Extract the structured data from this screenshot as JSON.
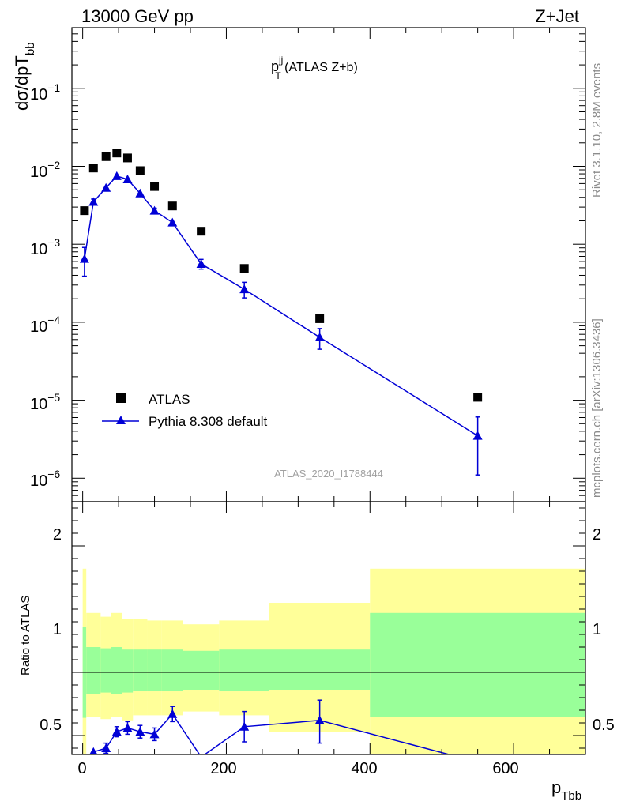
{
  "header": {
    "left": "13000 GeV pp",
    "right": "Z+Jet"
  },
  "plot_title": {
    "main": "p",
    "sup": "jj",
    "sub": "T",
    "rest": " (ATLAS Z+b)"
  },
  "watermark": "ATLAS_2020_I1788444",
  "side_text": {
    "rivet": "Rivet 3.1.10,  2.8M events",
    "mcplots": "mcplots.cern.ch [arXiv:1306.3436]"
  },
  "x_axis": {
    "main": "p",
    "sub": "Tbb",
    "ticks": [
      "0",
      "200",
      "400",
      "600"
    ]
  },
  "y_axis_top": {
    "main": "dσ/dpT",
    "sub": "bb",
    "ticks": [
      {
        "base": "10",
        "exp": "−1"
      },
      {
        "base": "10",
        "exp": "−2"
      },
      {
        "base": "10",
        "exp": "−3"
      },
      {
        "base": "10",
        "exp": "−4"
      },
      {
        "base": "10",
        "exp": "−5"
      },
      {
        "base": "10",
        "exp": "−6"
      }
    ]
  },
  "y_axis_bottom": {
    "label": "Ratio to ATLAS",
    "ticks": [
      "2",
      "1",
      "0.5"
    ]
  },
  "legend": {
    "data": "ATLAS",
    "mc": "Pythia 8.308 default"
  },
  "colors": {
    "mc": "#0000d6",
    "green": "#99ff99",
    "yellow": "#ffff99"
  },
  "chart_data": [
    {
      "type": "scatter",
      "xlim": [
        -15,
        700
      ],
      "ylim": [
        5e-07,
        0.6
      ],
      "log_y": true,
      "series": [
        {
          "name": "ATLAS",
          "x": [
            2.5,
            15,
            32.5,
            47.5,
            62.5,
            80,
            100,
            125,
            165,
            225,
            330,
            550
          ],
          "y": [
            0.0027,
            0.0095,
            0.0133,
            0.0148,
            0.0128,
            0.0088,
            0.0055,
            0.0031,
            0.00147,
            0.00049,
            0.000111,
            1.09e-05
          ]
        },
        {
          "name": "Pythia 8.308 default",
          "x": [
            2.5,
            15,
            32.5,
            47.5,
            62.5,
            80,
            100,
            125,
            165,
            225,
            330,
            550
          ],
          "y": [
            0.00065,
            0.0035,
            0.0053,
            0.0075,
            0.0068,
            0.0045,
            0.0027,
            0.0019,
            0.00056,
            0.000265,
            6.4e-05,
            3.5e-06
          ],
          "err_lo": [
            0.00026,
            0.0003,
            0.0003,
            0.0004,
            0.0004,
            0.0003,
            0.0002,
            0.0001,
            8e-05,
            6e-05,
            1.9e-05,
            2.4e-06
          ],
          "err_hi": [
            0.00026,
            0.0003,
            0.0003,
            0.0004,
            0.0004,
            0.0003,
            0.0002,
            0.0001,
            8e-05,
            6e-05,
            1.9e-05,
            2.6e-06
          ]
        }
      ]
    },
    {
      "type": "line",
      "xlim": [
        -15,
        700
      ],
      "ylim": [
        0.35,
        2.35
      ],
      "ref_line": 1,
      "bands": {
        "edges": [
          0,
          5,
          25,
          40,
          55,
          70,
          90,
          110,
          140,
          190,
          260,
          400,
          700
        ],
        "green_lo": [
          0.64,
          0.83,
          0.84,
          0.83,
          0.84,
          0.85,
          0.85,
          0.85,
          0.86,
          0.85,
          0.86,
          0.65
        ],
        "green_hi": [
          1.36,
          1.2,
          1.19,
          1.2,
          1.18,
          1.18,
          1.18,
          1.18,
          1.17,
          1.18,
          1.18,
          1.47
        ],
        "yellow_lo": [
          0.3,
          0.65,
          0.63,
          0.65,
          0.62,
          0.66,
          0.66,
          0.66,
          0.69,
          0.66,
          0.53,
          0.3
        ],
        "yellow_hi": [
          1.82,
          1.47,
          1.44,
          1.47,
          1.42,
          1.42,
          1.41,
          1.41,
          1.38,
          1.41,
          1.55,
          1.82
        ]
      },
      "series": [
        {
          "name": "Pythia 8.308 default",
          "x": [
            2.5,
            15,
            32.5,
            47.5,
            62.5,
            80,
            100,
            125,
            165,
            225,
            330,
            550
          ],
          "y": [
            0.24,
            0.37,
            0.4,
            0.53,
            0.56,
            0.53,
            0.51,
            0.67,
            0.33,
            0.57,
            0.62,
            0.29
          ],
          "err_lo": [
            0,
            0,
            0.04,
            0.04,
            0.05,
            0.05,
            0.05,
            0.06,
            0,
            0.12,
            0.18,
            0
          ],
          "err_hi": [
            0,
            0,
            0.04,
            0.04,
            0.05,
            0.05,
            0.05,
            0.06,
            0,
            0.12,
            0.16,
            0
          ]
        }
      ]
    }
  ]
}
